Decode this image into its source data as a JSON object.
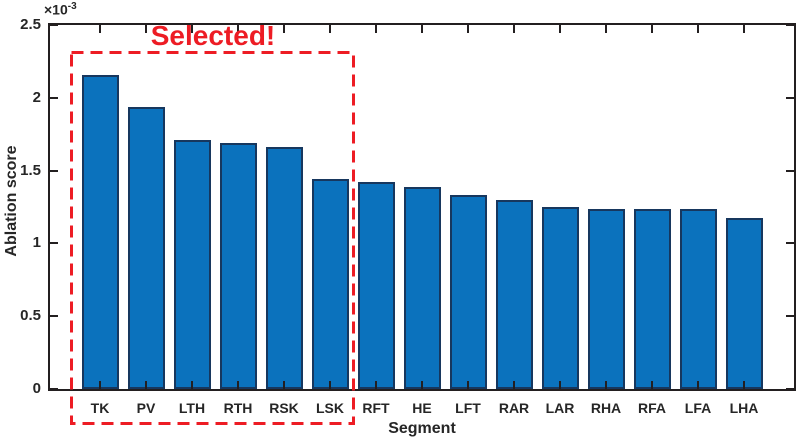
{
  "colors": {
    "background": "#ffffff",
    "bar_fill": "#0b72bd",
    "bar_edge": "#17375e",
    "axis": "#231f20",
    "text": "#262626",
    "accent_red": "#ed1c24"
  },
  "chart_data": {
    "type": "bar",
    "title": "",
    "xlabel": "Segment",
    "ylabel": "Ablation score",
    "y_multiplier_base": "×10",
    "y_multiplier_exp": "-3",
    "values_scale": "1e-3",
    "categories": [
      "TK",
      "PV",
      "LTH",
      "RTH",
      "RSK",
      "LSK",
      "RFT",
      "HE",
      "LFT",
      "RAR",
      "LAR",
      "RHA",
      "RFA",
      "LFA",
      "LHA"
    ],
    "values": [
      2.16,
      1.94,
      1.71,
      1.69,
      1.665,
      1.445,
      1.425,
      1.385,
      1.335,
      1.295,
      1.25,
      1.235,
      1.235,
      1.235,
      1.175
    ],
    "ylim": [
      0,
      2.5
    ],
    "yticks": [
      0,
      0.5,
      1,
      1.5,
      2,
      2.5
    ],
    "grid": false,
    "box": true,
    "tick_direction": "in",
    "legend": null
  },
  "annotation": {
    "label": "Selected!",
    "selected_categories": [
      "TK",
      "PV",
      "LTH",
      "RTH",
      "RSK",
      "LSK"
    ],
    "box_style": "dashed"
  }
}
